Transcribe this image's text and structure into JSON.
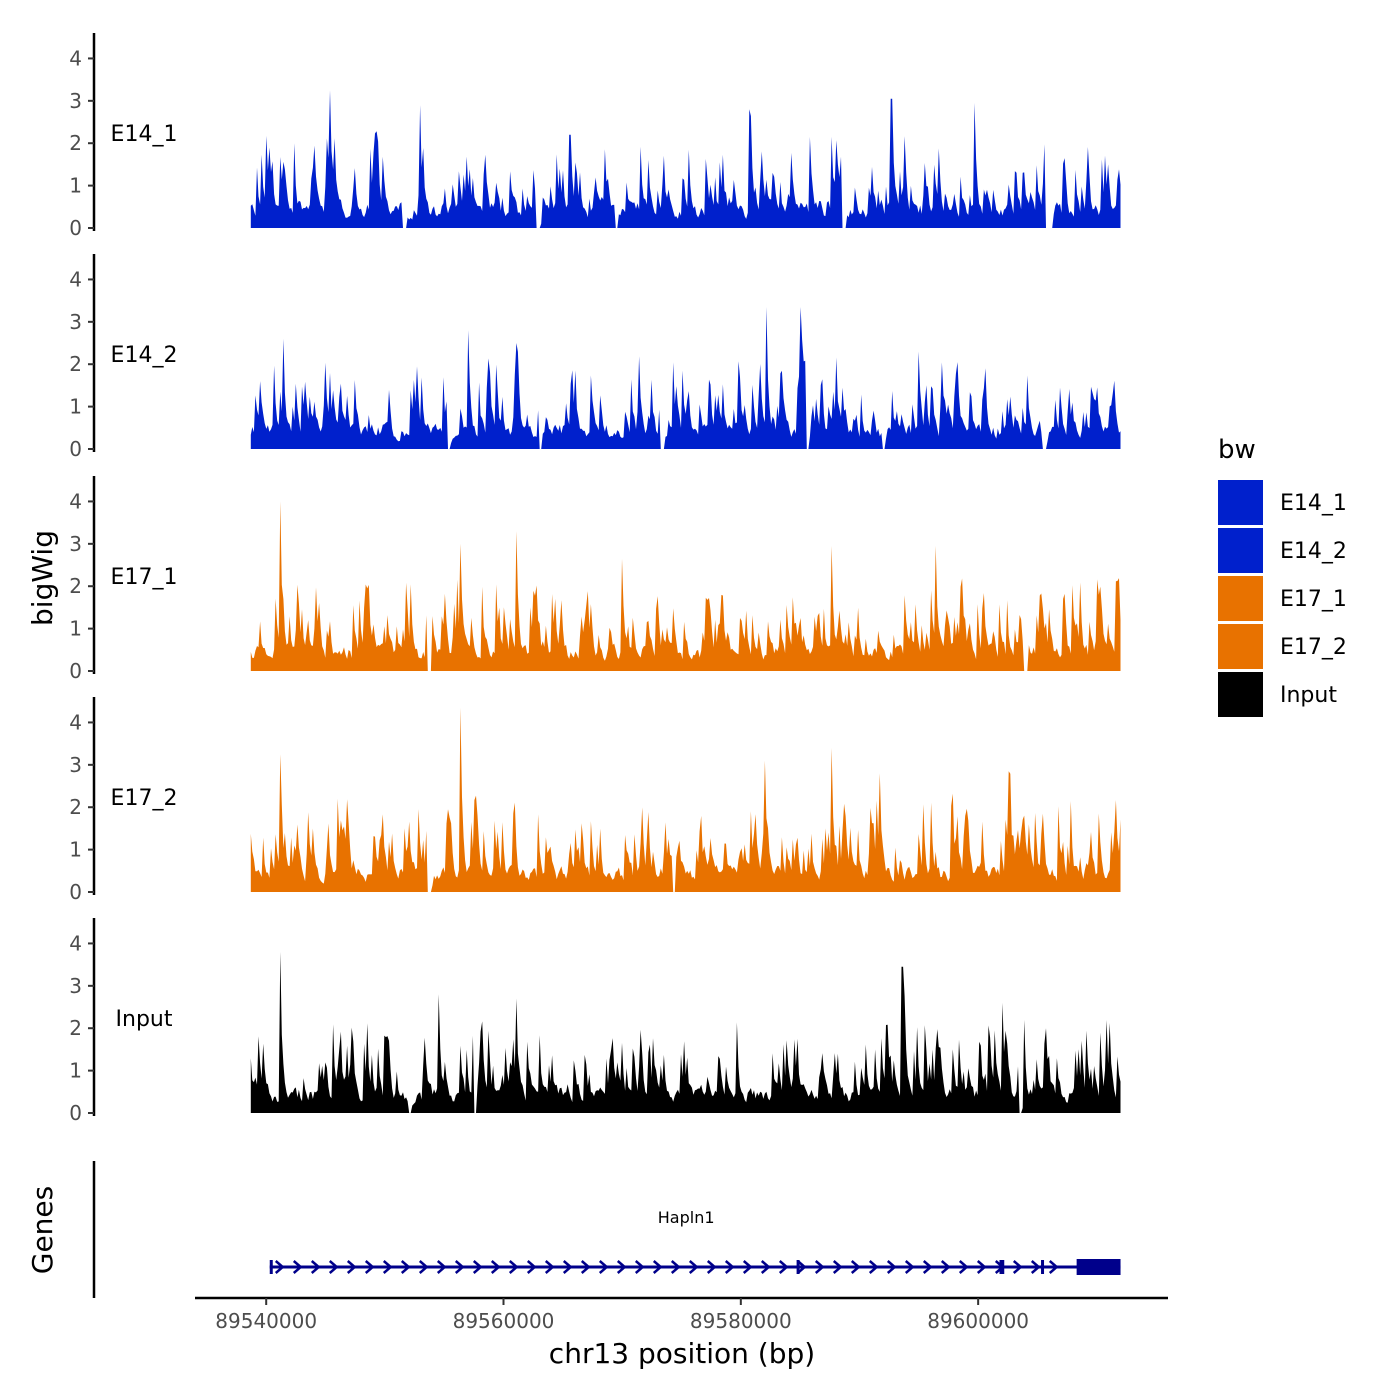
{
  "chart_data": {
    "type": "area",
    "ylabel": "bigWig",
    "xlabel": "chr13 position (bp)",
    "chromosome": "chr13",
    "xlim": [
      89534000,
      89616000
    ],
    "data_range": [
      89538700,
      89612000
    ],
    "ylim": [
      0,
      4.6
    ],
    "yticks": [
      0,
      1,
      2,
      3,
      4
    ],
    "xticks": [
      89540000,
      89560000,
      89580000,
      89600000
    ],
    "legend": {
      "title": "bw",
      "position": "right",
      "entries": [
        {
          "label": "E14_1",
          "color": "#0020CC"
        },
        {
          "label": "E14_2",
          "color": "#0020CC"
        },
        {
          "label": "E17_1",
          "color": "#E87200"
        },
        {
          "label": "E17_2",
          "color": "#E87200"
        },
        {
          "label": "Input",
          "color": "#000000"
        }
      ]
    },
    "tracks": [
      {
        "name": "E14_1",
        "color": "#0020CC",
        "peaks": [
          [
            89545400,
            3.25
          ],
          [
            89553000,
            2.9
          ],
          [
            89565600,
            2.2
          ],
          [
            89580700,
            2.8
          ],
          [
            89592700,
            3.05
          ],
          [
            89599700,
            2.95
          ],
          [
            89611000,
            1.5
          ]
        ],
        "gaps": [
          [
            89551400,
            89551800
          ],
          [
            89562700,
            89563100
          ],
          [
            89569400,
            89569700
          ],
          [
            89588500,
            89588900
          ],
          [
            89605600,
            89606300
          ]
        ]
      },
      {
        "name": "E14_2",
        "color": "#0020CC",
        "peaks": [
          [
            89541500,
            2.6
          ],
          [
            89557000,
            2.8
          ],
          [
            89561100,
            2.5
          ],
          [
            89582200,
            3.35
          ],
          [
            89585000,
            3.35
          ],
          [
            89595000,
            2.3
          ]
        ],
        "gaps": [
          [
            89555300,
            89555500
          ],
          [
            89563000,
            89563300
          ],
          [
            89573200,
            89573600
          ],
          [
            89585500,
            89585800
          ],
          [
            89591900,
            89592200
          ],
          [
            89605400,
            89605800
          ]
        ]
      },
      {
        "name": "E17_1",
        "color": "#E87200",
        "peaks": [
          [
            89541200,
            4.0
          ],
          [
            89556400,
            3.0
          ],
          [
            89561100,
            3.3
          ],
          [
            89570000,
            2.65
          ],
          [
            89587700,
            2.95
          ],
          [
            89596400,
            2.95
          ]
        ],
        "gaps": [
          [
            89553600,
            89553900
          ],
          [
            89603800,
            89604200
          ]
        ]
      },
      {
        "name": "E17_2",
        "color": "#E87200",
        "peaks": [
          [
            89541200,
            3.25
          ],
          [
            89556400,
            4.35
          ],
          [
            89582000,
            3.1
          ],
          [
            89587700,
            3.4
          ],
          [
            89591700,
            2.8
          ],
          [
            89602600,
            2.85
          ]
        ],
        "gaps": [
          [
            89553600,
            89553900
          ],
          [
            89574200,
            89574500
          ]
        ]
      },
      {
        "name": "Input",
        "color": "#000000",
        "peaks": [
          [
            89541200,
            3.8
          ],
          [
            89554500,
            2.8
          ],
          [
            89561100,
            2.7
          ],
          [
            89593600,
            3.45
          ],
          [
            89602000,
            2.6
          ]
        ],
        "gaps": [
          [
            89552000,
            89552300
          ],
          [
            89557500,
            89557800
          ],
          [
            89603400,
            89603700
          ]
        ]
      }
    ],
    "genes_track": {
      "title": "Genes",
      "genes": [
        {
          "name": "Hapln1",
          "start": 89540300,
          "end": 89612000,
          "strand": "+",
          "color": "#00008B",
          "exons": [
            [
              89540300,
              89540500
            ],
            [
              89584700,
              89584900
            ],
            [
              89601800,
              89602200
            ],
            [
              89605300,
              89605500
            ],
            [
              89608300,
              89612000
            ]
          ]
        }
      ]
    }
  }
}
